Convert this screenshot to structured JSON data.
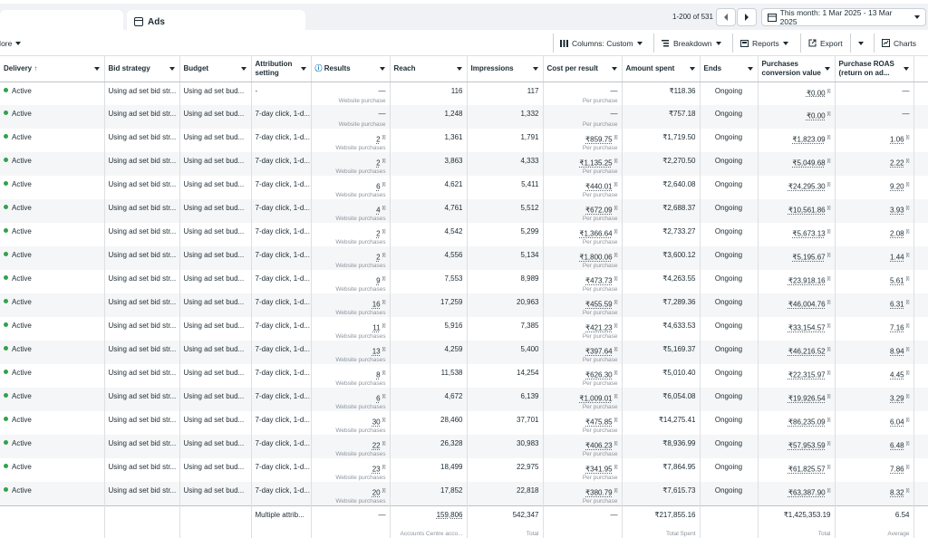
{
  "topbar": {
    "tab": "Ads",
    "pagination": "1-200 of 531",
    "date_range": "This month: 1 Mar 2025 - 13 Mar 2025"
  },
  "toolbar": {
    "more": "More",
    "columns": "Columns: Custom",
    "breakdown": "Breakdown",
    "reports": "Reports",
    "export": "Export",
    "charts": "Charts"
  },
  "table": {
    "header": [
      "Delivery",
      "Bid strategy",
      "Budget",
      "Attribution setting",
      "Results",
      "Reach",
      "Impressions",
      "Cost per result",
      "Amount spent",
      "Ends",
      "Purchases conversion value",
      "Purchase ROAS (return on ad..."
    ],
    "rows": [
      [
        "Active",
        "Using ad set bid str...",
        "Using ad set bud...",
        "-",
        "—",
        "Website purchase",
        "116",
        "117",
        "—",
        "Per purchase",
        "₹118.36",
        "Ongoing",
        "₹0.00",
        "—"
      ],
      [
        "Active",
        "Using ad set bid str...",
        "Using ad set bud...",
        "7-day click, 1-d...",
        "—",
        "Website purchase",
        "1,248",
        "1,332",
        "—",
        "Per purchase",
        "₹757.18",
        "Ongoing",
        "₹0.00",
        "—"
      ],
      [
        "Active",
        "Using ad set bid str...",
        "Using ad set bud...",
        "7-day click, 1-d...",
        "2",
        "Website purchases",
        "1,361",
        "1,791",
        "₹859.75",
        "Per purchase",
        "₹1,719.50",
        "Ongoing",
        "₹1,823.09",
        "1.06"
      ],
      [
        "Active",
        "Using ad set bid str...",
        "Using ad set bud...",
        "7-day click, 1-d...",
        "2",
        "Website purchases",
        "3,863",
        "4,333",
        "₹1,135.25",
        "Per purchase",
        "₹2,270.50",
        "Ongoing",
        "₹5,049.68",
        "2.22"
      ],
      [
        "Active",
        "Using ad set bid str...",
        "Using ad set bud...",
        "7-day click, 1-d...",
        "6",
        "Website purchases",
        "4,621",
        "5,411",
        "₹440.01",
        "Per purchase",
        "₹2,640.08",
        "Ongoing",
        "₹24,295.30",
        "9.20"
      ],
      [
        "Active",
        "Using ad set bid str...",
        "Using ad set bud...",
        "7-day click, 1-d...",
        "4",
        "Website purchases",
        "4,761",
        "5,512",
        "₹672.09",
        "Per purchase",
        "₹2,688.37",
        "Ongoing",
        "₹10,561.86",
        "3.93"
      ],
      [
        "Active",
        "Using ad set bid str...",
        "Using ad set bud...",
        "7-day click, 1-d...",
        "2",
        "Website purchases",
        "4,542",
        "5,299",
        "₹1,366.64",
        "Per purchase",
        "₹2,733.27",
        "Ongoing",
        "₹5,673.13",
        "2.08"
      ],
      [
        "Active",
        "Using ad set bid str...",
        "Using ad set bud...",
        "7-day click, 1-d...",
        "2",
        "Website purchases",
        "4,556",
        "5,134",
        "₹1,800.06",
        "Per purchase",
        "₹3,600.12",
        "Ongoing",
        "₹5,195.67",
        "1.44"
      ],
      [
        "Active",
        "Using ad set bid str...",
        "Using ad set bud...",
        "7-day click, 1-d...",
        "9",
        "Website purchases",
        "7,553",
        "8,989",
        "₹473.73",
        "Per purchase",
        "₹4,263.55",
        "Ongoing",
        "₹23,918.16",
        "5.61"
      ],
      [
        "Active",
        "Using ad set bid str...",
        "Using ad set bud...",
        "7-day click, 1-d...",
        "16",
        "Website purchases",
        "17,259",
        "20,963",
        "₹455.59",
        "Per purchase",
        "₹7,289.36",
        "Ongoing",
        "₹46,004.76",
        "6.31"
      ],
      [
        "Active",
        "Using ad set bid str...",
        "Using ad set bud...",
        "7-day click, 1-d...",
        "11",
        "Website purchases",
        "5,916",
        "7,385",
        "₹421.23",
        "Per purchase",
        "₹4,633.53",
        "Ongoing",
        "₹33,154.57",
        "7.16"
      ],
      [
        "Active",
        "Using ad set bid str...",
        "Using ad set bud...",
        "7-day click, 1-d...",
        "13",
        "Website purchases",
        "4,259",
        "5,400",
        "₹397.64",
        "Per purchase",
        "₹5,169.37",
        "Ongoing",
        "₹46,216.52",
        "8.94"
      ],
      [
        "Active",
        "Using ad set bid str...",
        "Using ad set bud...",
        "7-day click, 1-d...",
        "8",
        "Website purchases",
        "11,538",
        "14,254",
        "₹626.30",
        "Per purchase",
        "₹5,010.40",
        "Ongoing",
        "₹22,315.97",
        "4.45"
      ],
      [
        "Active",
        "Using ad set bid str...",
        "Using ad set bud...",
        "7-day click, 1-d...",
        "6",
        "Website purchases",
        "4,672",
        "6,139",
        "₹1,009.01",
        "Per purchase",
        "₹6,054.08",
        "Ongoing",
        "₹19,926.54",
        "3.29"
      ],
      [
        "Active",
        "Using ad set bid str...",
        "Using ad set bud...",
        "7-day click, 1-d...",
        "30",
        "Website purchases",
        "28,460",
        "37,701",
        "₹475.85",
        "Per purchase",
        "₹14,275.41",
        "Ongoing",
        "₹86,235.09",
        "6.04"
      ],
      [
        "Active",
        "Using ad set bid str...",
        "Using ad set bud...",
        "7-day click, 1-d...",
        "22",
        "Website purchases",
        "26,328",
        "30,983",
        "₹406.23",
        "Per purchase",
        "₹8,936.99",
        "Ongoing",
        "₹57,953.59",
        "6.48"
      ],
      [
        "Active",
        "Using ad set bid str...",
        "Using ad set bud...",
        "7-day click, 1-d...",
        "23",
        "Website purchases",
        "18,499",
        "22,975",
        "₹341.95",
        "Per purchase",
        "₹7,864.95",
        "Ongoing",
        "₹61,825.57",
        "7.86"
      ],
      [
        "Active",
        "Using ad set bid str...",
        "Using ad set bud...",
        "7-day click, 1-d...",
        "20",
        "Website purchases",
        "17,852",
        "22,818",
        "₹380.79",
        "Per purchase",
        "₹7,615.73",
        "Ongoing",
        "₹63,387.90",
        "8.32"
      ]
    ],
    "footer": {
      "attribution": "Multiple attrib...",
      "results": "—",
      "reach": "159,806",
      "reach_sub": "Accounts Centre acco...",
      "impressions": "542,347",
      "impressions_sub": "Total",
      "cost": "—",
      "spent": "₹217,855.16",
      "spent_sub": "Total Spent",
      "pcv": "₹1,425,353.19",
      "pcv_sub": "Total",
      "roas": "6.54",
      "roas_sub": "Average"
    }
  }
}
